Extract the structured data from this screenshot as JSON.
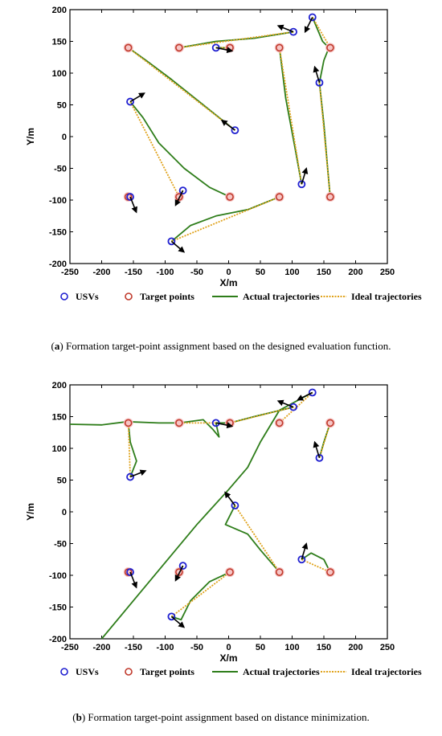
{
  "colors": {
    "usv": "#1f1fd0",
    "target": "#c0392b",
    "target_halo": "#f6c6c6",
    "actual": "#2e7d1a",
    "ideal": "#e0a21a",
    "arrow": "#000000"
  },
  "legend": [
    {
      "key": "usv",
      "label": "USVs"
    },
    {
      "key": "target",
      "label": "Target points"
    },
    {
      "key": "actual",
      "label": "Actual trajectories"
    },
    {
      "key": "ideal",
      "label": "Ideal trajectories"
    }
  ],
  "chart_data": [
    {
      "type": "scatter",
      "id": "a",
      "caption_letter": "a",
      "caption_text": " Formation target-point assignment based on the designed evaluation function.",
      "xlabel": "X/m",
      "ylabel": "Y/m",
      "xlim": [
        -250,
        250
      ],
      "ylim": [
        -200,
        200
      ],
      "xticks": [
        -250,
        -200,
        -150,
        -100,
        -50,
        0,
        50,
        100,
        150,
        200,
        250
      ],
      "yticks": [
        -200,
        -150,
        -100,
        -50,
        0,
        50,
        100,
        150,
        200
      ],
      "grid": false,
      "usvs": [
        [
          -155,
          55
        ],
        [
          -155,
          -95
        ],
        [
          -72,
          -85
        ],
        [
          -90,
          -165
        ],
        [
          10,
          10
        ],
        [
          -20,
          140
        ],
        [
          102,
          165
        ],
        [
          132,
          188
        ],
        [
          143,
          85
        ],
        [
          115,
          -75
        ]
      ],
      "targets": [
        [
          -158,
          140
        ],
        [
          -78,
          140
        ],
        [
          2,
          140
        ],
        [
          80,
          140
        ],
        [
          160,
          140
        ],
        [
          -158,
          -95
        ],
        [
          -78,
          -95
        ],
        [
          2,
          -95
        ],
        [
          80,
          -95
        ],
        [
          160,
          -95
        ]
      ],
      "heading_arrows": [
        {
          "at": [
            -155,
            55
          ],
          "dir": [
            1,
            0.6
          ]
        },
        {
          "at": [
            -155,
            -95
          ],
          "dir": [
            0.4,
            -1
          ]
        },
        {
          "at": [
            -72,
            -85
          ],
          "dir": [
            -0.5,
            -1
          ]
        },
        {
          "at": [
            -90,
            -165
          ],
          "dir": [
            0.7,
            -0.6
          ]
        },
        {
          "at": [
            10,
            10
          ],
          "dir": [
            -0.8,
            0.6
          ]
        },
        {
          "at": [
            -20,
            140
          ],
          "dir": [
            1,
            -0.2
          ]
        },
        {
          "at": [
            102,
            165
          ],
          "dir": [
            -1,
            0.4
          ]
        },
        {
          "at": [
            132,
            188
          ],
          "dir": [
            -0.5,
            -1
          ]
        },
        {
          "at": [
            143,
            85
          ],
          "dir": [
            -0.3,
            1
          ]
        },
        {
          "at": [
            115,
            -75
          ],
          "dir": [
            0.3,
            1
          ]
        }
      ],
      "ideal_trajectories": [
        [
          [
            -155,
            55
          ],
          [
            -78,
            -95
          ]
        ],
        [
          [
            -155,
            -95
          ],
          [
            -158,
            -95
          ]
        ],
        [
          [
            -72,
            -85
          ],
          [
            -78,
            -95
          ]
        ],
        [
          [
            -90,
            -165
          ],
          [
            80,
            -95
          ]
        ],
        [
          [
            10,
            10
          ],
          [
            -158,
            140
          ]
        ],
        [
          [
            -20,
            140
          ],
          [
            2,
            140
          ]
        ],
        [
          [
            102,
            165
          ],
          [
            -78,
            140
          ]
        ],
        [
          [
            132,
            188
          ],
          [
            160,
            140
          ]
        ],
        [
          [
            143,
            85
          ],
          [
            160,
            -95
          ]
        ],
        [
          [
            115,
            -75
          ],
          [
            80,
            140
          ]
        ]
      ],
      "actual_trajectories": [
        [
          [
            -155,
            55
          ],
          [
            -135,
            30
          ],
          [
            -110,
            -10
          ],
          [
            -70,
            -50
          ],
          [
            -30,
            -80
          ],
          [
            2,
            -95
          ]
        ],
        [
          [
            -155,
            -95
          ],
          [
            -158,
            -95
          ]
        ],
        [
          [
            -72,
            -85
          ],
          [
            -76,
            -92
          ],
          [
            -78,
            -95
          ]
        ],
        [
          [
            -90,
            -165
          ],
          [
            -60,
            -140
          ],
          [
            -20,
            -125
          ],
          [
            30,
            -115
          ],
          [
            80,
            -95
          ]
        ],
        [
          [
            10,
            10
          ],
          [
            -40,
            50
          ],
          [
            -90,
            90
          ],
          [
            -130,
            120
          ],
          [
            -158,
            140
          ]
        ],
        [
          [
            -20,
            140
          ],
          [
            -5,
            140
          ],
          [
            2,
            140
          ]
        ],
        [
          [
            -78,
            140
          ],
          [
            -20,
            150
          ],
          [
            40,
            155
          ],
          [
            102,
            165
          ]
        ],
        [
          [
            132,
            188
          ],
          [
            148,
            150
          ],
          [
            158,
            140
          ],
          [
            150,
            120
          ],
          [
            143,
            85
          ]
        ],
        [
          [
            143,
            85
          ],
          [
            150,
            20
          ],
          [
            156,
            -50
          ],
          [
            160,
            -95
          ]
        ],
        [
          [
            80,
            140
          ],
          [
            90,
            60
          ],
          [
            105,
            -20
          ],
          [
            115,
            -75
          ]
        ]
      ]
    },
    {
      "type": "scatter",
      "id": "b",
      "caption_letter": "b",
      "caption_text": " Formation target-point assignment based on distance minimization.",
      "xlabel": "X/m",
      "ylabel": "Y/m",
      "xlim": [
        -250,
        250
      ],
      "ylim": [
        -200,
        200
      ],
      "xticks": [
        -250,
        -200,
        -150,
        -100,
        -50,
        0,
        50,
        100,
        150,
        200,
        250
      ],
      "yticks": [
        -200,
        -150,
        -100,
        -50,
        0,
        50,
        100,
        150,
        200
      ],
      "grid": false,
      "usvs": [
        [
          -155,
          55
        ],
        [
          -155,
          -95
        ],
        [
          -72,
          -85
        ],
        [
          -90,
          -165
        ],
        [
          10,
          10
        ],
        [
          -20,
          140
        ],
        [
          102,
          165
        ],
        [
          132,
          188
        ],
        [
          143,
          85
        ],
        [
          115,
          -75
        ]
      ],
      "targets": [
        [
          -158,
          140
        ],
        [
          -78,
          140
        ],
        [
          2,
          140
        ],
        [
          80,
          140
        ],
        [
          160,
          140
        ],
        [
          -158,
          -95
        ],
        [
          -78,
          -95
        ],
        [
          2,
          -95
        ],
        [
          80,
          -95
        ],
        [
          160,
          -95
        ]
      ],
      "heading_arrows": [
        {
          "at": [
            -155,
            55
          ],
          "dir": [
            1,
            0.4
          ]
        },
        {
          "at": [
            -155,
            -95
          ],
          "dir": [
            0.4,
            -1
          ]
        },
        {
          "at": [
            -72,
            -85
          ],
          "dir": [
            -0.5,
            -1
          ]
        },
        {
          "at": [
            -90,
            -165
          ],
          "dir": [
            0.7,
            -0.6
          ]
        },
        {
          "at": [
            10,
            10
          ],
          "dir": [
            -0.6,
            0.8
          ]
        },
        {
          "at": [
            -20,
            140
          ],
          "dir": [
            1,
            -0.2
          ]
        },
        {
          "at": [
            102,
            165
          ],
          "dir": [
            -1,
            0.4
          ]
        },
        {
          "at": [
            132,
            188
          ],
          "dir": [
            -0.8,
            -0.4
          ]
        },
        {
          "at": [
            143,
            85
          ],
          "dir": [
            -0.3,
            1
          ]
        },
        {
          "at": [
            115,
            -75
          ],
          "dir": [
            0.3,
            1
          ]
        }
      ],
      "ideal_trajectories": [
        [
          [
            -155,
            55
          ],
          [
            -158,
            140
          ]
        ],
        [
          [
            -155,
            -95
          ],
          [
            -158,
            -95
          ]
        ],
        [
          [
            -72,
            -85
          ],
          [
            -78,
            -95
          ]
        ],
        [
          [
            -90,
            -165
          ],
          [
            2,
            -95
          ]
        ],
        [
          [
            10,
            10
          ],
          [
            80,
            -95
          ]
        ],
        [
          [
            -20,
            140
          ],
          [
            -78,
            140
          ]
        ],
        [
          [
            102,
            165
          ],
          [
            2,
            140
          ]
        ],
        [
          [
            132,
            188
          ],
          [
            80,
            140
          ]
        ],
        [
          [
            143,
            85
          ],
          [
            160,
            140
          ]
        ],
        [
          [
            115,
            -75
          ],
          [
            160,
            -95
          ]
        ]
      ],
      "actual_trajectories": [
        [
          [
            -200,
            -200
          ],
          [
            -150,
            -140
          ],
          [
            -100,
            -80
          ],
          [
            -50,
            -20
          ],
          [
            0,
            35
          ],
          [
            30,
            70
          ],
          [
            50,
            110
          ],
          [
            80,
            160
          ],
          [
            132,
            188
          ]
        ],
        [
          [
            -250,
            138
          ],
          [
            -200,
            137
          ],
          [
            -160,
            142
          ],
          [
            -110,
            140
          ],
          [
            -78,
            140
          ]
        ],
        [
          [
            -78,
            140
          ],
          [
            -40,
            145
          ],
          [
            -25,
            130
          ],
          [
            -15,
            118
          ],
          [
            -20,
            140
          ],
          [
            2,
            140
          ]
        ],
        [
          [
            2,
            140
          ],
          [
            40,
            150
          ],
          [
            102,
            165
          ]
        ],
        [
          [
            -158,
            140
          ],
          [
            -155,
            110
          ],
          [
            -145,
            80
          ],
          [
            -155,
            55
          ]
        ],
        [
          [
            -155,
            -95
          ],
          [
            -158,
            -95
          ]
        ],
        [
          [
            -72,
            -85
          ],
          [
            -78,
            -95
          ]
        ],
        [
          [
            -90,
            -165
          ],
          [
            -75,
            -170
          ],
          [
            -60,
            -140
          ],
          [
            -30,
            -110
          ],
          [
            2,
            -95
          ]
        ],
        [
          [
            10,
            10
          ],
          [
            -5,
            -20
          ],
          [
            30,
            -35
          ],
          [
            50,
            -60
          ],
          [
            80,
            -95
          ]
        ],
        [
          [
            115,
            -75
          ],
          [
            130,
            -65
          ],
          [
            150,
            -75
          ],
          [
            160,
            -95
          ]
        ],
        [
          [
            143,
            85
          ],
          [
            150,
            110
          ],
          [
            160,
            140
          ]
        ]
      ]
    }
  ]
}
